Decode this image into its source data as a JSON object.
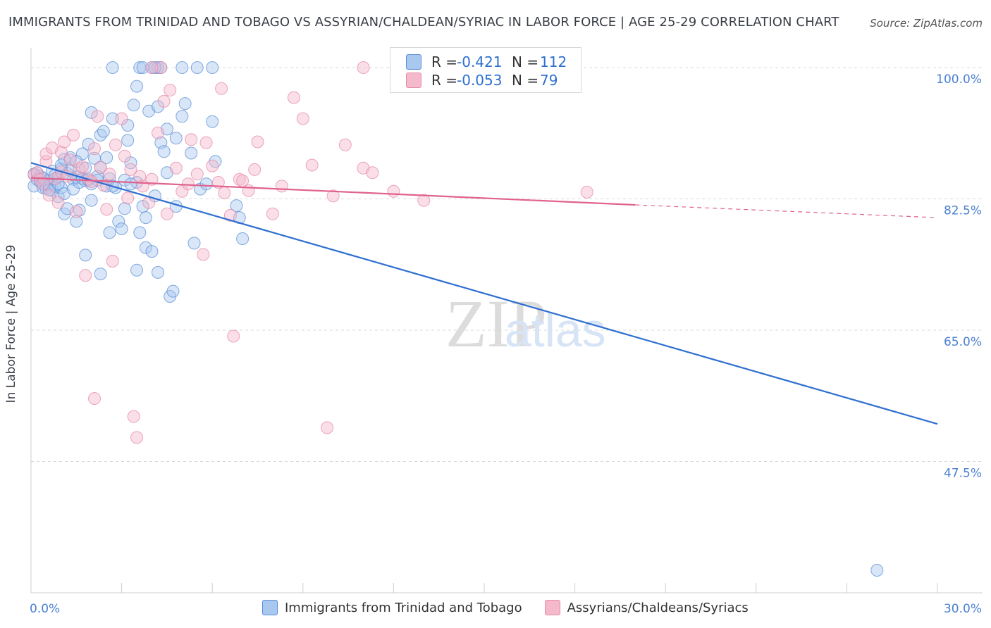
{
  "header": {
    "title": "IMMIGRANTS FROM TRINIDAD AND TOBAGO VS ASSYRIAN/CHALDEAN/SYRIAC IN LABOR FORCE | AGE 25-29 CORRELATION CHART",
    "source": "Source: ZipAtlas.com"
  },
  "watermark": {
    "zip": "ZIP",
    "atlas": "atlas"
  },
  "legend": {
    "rows": [
      {
        "r_label": "R =",
        "r_value": "-0.421",
        "n_label": "N =",
        "n_value": "112"
      },
      {
        "r_label": "R =",
        "r_value": "-0.053",
        "n_label": "N =",
        "n_value": "79"
      }
    ]
  },
  "colors": {
    "blue_fill": "#a9c8f0",
    "blue_stroke": "#5b8fd6",
    "blue_line": "#2e6fd0",
    "pink_fill": "#f4b9cb",
    "pink_stroke": "#e58aa8",
    "pink_line": "#e0628e",
    "axis_text": "#4a7fd0",
    "grid": "#d8d8d8"
  },
  "chart_data": {
    "type": "scatter",
    "title": "IMMIGRANTS FROM TRINIDAD AND TOBAGO VS ASSYRIAN/CHALDEAN/SYRIAC IN LABOR FORCE | AGE 25-29 CORRELATION CHART",
    "xlabel": "",
    "ylabel": "In Labor Force | Age 25-29",
    "xlim": [
      0,
      30
    ],
    "ylim": [
      30,
      100
    ],
    "x_tick_labels": [
      "0.0%",
      "30.0%"
    ],
    "y_tick_labels": [
      "100.0%",
      "82.5%",
      "65.0%",
      "47.5%"
    ],
    "y_ticks": [
      100,
      82.5,
      65,
      47.5
    ],
    "legend_position": "top-center",
    "series": [
      {
        "name": "Immigrants from Trinidad and Tobago",
        "color": "blue",
        "r": -0.421,
        "n": 112,
        "trend": {
          "x": [
            0,
            30
          ],
          "y": [
            87.3,
            52.5
          ],
          "dashed_from": null
        },
        "points": [
          [
            0.1,
            85.8
          ],
          [
            0.1,
            84.2
          ],
          [
            0.2,
            85.1
          ],
          [
            0.2,
            86.0
          ],
          [
            0.3,
            84.8
          ],
          [
            0.3,
            85.5
          ],
          [
            0.4,
            84.0
          ],
          [
            0.4,
            85.3
          ],
          [
            0.5,
            84.6
          ],
          [
            0.5,
            83.9
          ],
          [
            0.6,
            85.0
          ],
          [
            0.6,
            84.3
          ],
          [
            0.7,
            86.2
          ],
          [
            0.7,
            83.6
          ],
          [
            0.8,
            85.7
          ],
          [
            0.8,
            84.1
          ],
          [
            0.9,
            82.8
          ],
          [
            0.9,
            85.4
          ],
          [
            1.0,
            84.0
          ],
          [
            1.0,
            86.5
          ],
          [
            1.1,
            83.2
          ],
          [
            1.1,
            80.5
          ],
          [
            1.2,
            85.9
          ],
          [
            1.2,
            81.2
          ],
          [
            1.3,
            88.0
          ],
          [
            1.3,
            86.3
          ],
          [
            1.4,
            85.1
          ],
          [
            1.4,
            83.8
          ],
          [
            1.5,
            85.4
          ],
          [
            1.5,
            79.5
          ],
          [
            1.6,
            84.7
          ],
          [
            1.6,
            81.0
          ],
          [
            1.7,
            85.2
          ],
          [
            1.7,
            88.5
          ],
          [
            1.8,
            84.9
          ],
          [
            1.8,
            86.6
          ],
          [
            1.9,
            85.0
          ],
          [
            1.9,
            89.8
          ],
          [
            2.0,
            84.5
          ],
          [
            2.0,
            82.3
          ],
          [
            2.1,
            87.9
          ],
          [
            2.2,
            85.5
          ],
          [
            2.2,
            85.0
          ],
          [
            2.3,
            91.0
          ],
          [
            2.3,
            86.7
          ],
          [
            2.4,
            91.5
          ],
          [
            2.5,
            84.2
          ],
          [
            2.5,
            88.0
          ],
          [
            2.6,
            85.2
          ],
          [
            2.7,
            93.2
          ],
          [
            2.8,
            84.0
          ],
          [
            2.9,
            79.5
          ],
          [
            3.0,
            78.5
          ],
          [
            3.1,
            85.0
          ],
          [
            3.2,
            90.3
          ],
          [
            3.3,
            87.3
          ],
          [
            3.4,
            95.0
          ],
          [
            3.5,
            84.7
          ],
          [
            3.6,
            78.0
          ],
          [
            3.7,
            81.5
          ],
          [
            3.8,
            76.0
          ],
          [
            3.9,
            94.2
          ],
          [
            4.0,
            75.5
          ],
          [
            4.1,
            82.9
          ],
          [
            4.2,
            72.7
          ],
          [
            4.3,
            90.0
          ],
          [
            4.4,
            88.8
          ],
          [
            4.5,
            91.8
          ],
          [
            4.6,
            69.5
          ],
          [
            4.7,
            70.2
          ],
          [
            4.8,
            81.5
          ],
          [
            5.0,
            93.5
          ],
          [
            5.1,
            95.2
          ],
          [
            5.3,
            88.6
          ],
          [
            5.4,
            76.6
          ],
          [
            5.6,
            83.8
          ],
          [
            5.8,
            84.5
          ],
          [
            6.0,
            92.8
          ],
          [
            6.1,
            87.5
          ],
          [
            6.8,
            81.6
          ],
          [
            6.9,
            80.0
          ],
          [
            7.0,
            77.2
          ],
          [
            2.3,
            72.5
          ],
          [
            1.8,
            75.0
          ],
          [
            3.5,
            97.5
          ],
          [
            4.2,
            94.8
          ],
          [
            3.2,
            92.3
          ],
          [
            2.0,
            94.0
          ],
          [
            3.3,
            84.5
          ],
          [
            2.7,
            84.2
          ],
          [
            1.5,
            87.5
          ],
          [
            2.6,
            78.0
          ],
          [
            1.0,
            87.0
          ],
          [
            0.6,
            83.7
          ],
          [
            0.9,
            84.5
          ],
          [
            1.1,
            87.8
          ],
          [
            4.8,
            90.6
          ],
          [
            3.8,
            80.0
          ],
          [
            4.5,
            86.0
          ],
          [
            4.0,
            100.0
          ],
          [
            3.5,
            73.0
          ],
          [
            3.1,
            81.2
          ],
          [
            5.5,
            100.0
          ],
          [
            5.0,
            100.0
          ],
          [
            3.6,
            100.0
          ],
          [
            4.2,
            100.0
          ],
          [
            4.3,
            100.0
          ],
          [
            4.1,
            100.0
          ],
          [
            3.7,
            100.0
          ],
          [
            2.7,
            100.0
          ],
          [
            6.0,
            100.0
          ],
          [
            28.0,
            33.0
          ]
        ]
      },
      {
        "name": "Assyrians/Chaldeans/Syriacs",
        "color": "pink",
        "r": -0.053,
        "n": 79,
        "trend": {
          "x": [
            0,
            20,
            30
          ],
          "y": [
            85.3,
            81.7,
            80.0
          ],
          "dashed_from": 20
        },
        "points": [
          [
            0.1,
            85.7
          ],
          [
            0.2,
            86.0
          ],
          [
            0.3,
            85.1
          ],
          [
            0.4,
            84.5
          ],
          [
            0.5,
            87.5
          ],
          [
            0.5,
            88.5
          ],
          [
            0.6,
            83.0
          ],
          [
            0.7,
            89.3
          ],
          [
            0.8,
            85.2
          ],
          [
            0.9,
            82.0
          ],
          [
            1.0,
            88.7
          ],
          [
            1.0,
            86.1
          ],
          [
            1.1,
            90.1
          ],
          [
            1.2,
            85.5
          ],
          [
            1.3,
            87.7
          ],
          [
            1.4,
            91.0
          ],
          [
            1.5,
            80.8
          ],
          [
            1.6,
            86.5
          ],
          [
            1.7,
            86.8
          ],
          [
            1.8,
            72.3
          ],
          [
            1.9,
            85.2
          ],
          [
            2.0,
            84.8
          ],
          [
            2.1,
            89.2
          ],
          [
            2.2,
            93.5
          ],
          [
            2.3,
            86.7
          ],
          [
            2.4,
            84.3
          ],
          [
            2.5,
            81.1
          ],
          [
            2.6,
            85.8
          ],
          [
            2.7,
            74.2
          ],
          [
            2.8,
            89.7
          ],
          [
            3.0,
            93.2
          ],
          [
            3.1,
            88.2
          ],
          [
            3.2,
            82.6
          ],
          [
            3.3,
            86.4
          ],
          [
            3.4,
            53.5
          ],
          [
            3.5,
            50.7
          ],
          [
            3.6,
            85.5
          ],
          [
            3.7,
            84.2
          ],
          [
            3.9,
            82.0
          ],
          [
            4.0,
            85.1
          ],
          [
            4.2,
            91.3
          ],
          [
            4.4,
            95.5
          ],
          [
            4.5,
            80.5
          ],
          [
            4.6,
            97.0
          ],
          [
            4.8,
            86.6
          ],
          [
            5.0,
            83.5
          ],
          [
            5.2,
            84.5
          ],
          [
            5.3,
            90.4
          ],
          [
            5.5,
            85.8
          ],
          [
            5.7,
            75.1
          ],
          [
            5.8,
            90.0
          ],
          [
            6.0,
            86.9
          ],
          [
            6.2,
            84.7
          ],
          [
            6.3,
            97.2
          ],
          [
            6.4,
            83.3
          ],
          [
            6.6,
            80.3
          ],
          [
            6.7,
            64.2
          ],
          [
            6.9,
            85.1
          ],
          [
            7.0,
            84.9
          ],
          [
            7.2,
            83.6
          ],
          [
            7.4,
            86.4
          ],
          [
            7.5,
            90.1
          ],
          [
            8.0,
            80.5
          ],
          [
            8.3,
            84.2
          ],
          [
            8.7,
            96.0
          ],
          [
            9.0,
            93.2
          ],
          [
            9.3,
            87.0
          ],
          [
            9.8,
            52.0
          ],
          [
            10.0,
            82.9
          ],
          [
            11.0,
            86.6
          ],
          [
            12.0,
            83.5
          ],
          [
            13.0,
            82.3
          ],
          [
            11.3,
            86.0
          ],
          [
            10.4,
            89.7
          ],
          [
            18.4,
            83.4
          ],
          [
            11.0,
            100.0
          ],
          [
            4.3,
            100.0
          ],
          [
            4.0,
            100.0
          ],
          [
            2.1,
            55.9
          ]
        ]
      }
    ]
  },
  "bottom_legend": {
    "items": [
      {
        "label": "Immigrants from Trinidad and Tobago"
      },
      {
        "label": "Assyrians/Chaldeans/Syriacs"
      }
    ]
  }
}
